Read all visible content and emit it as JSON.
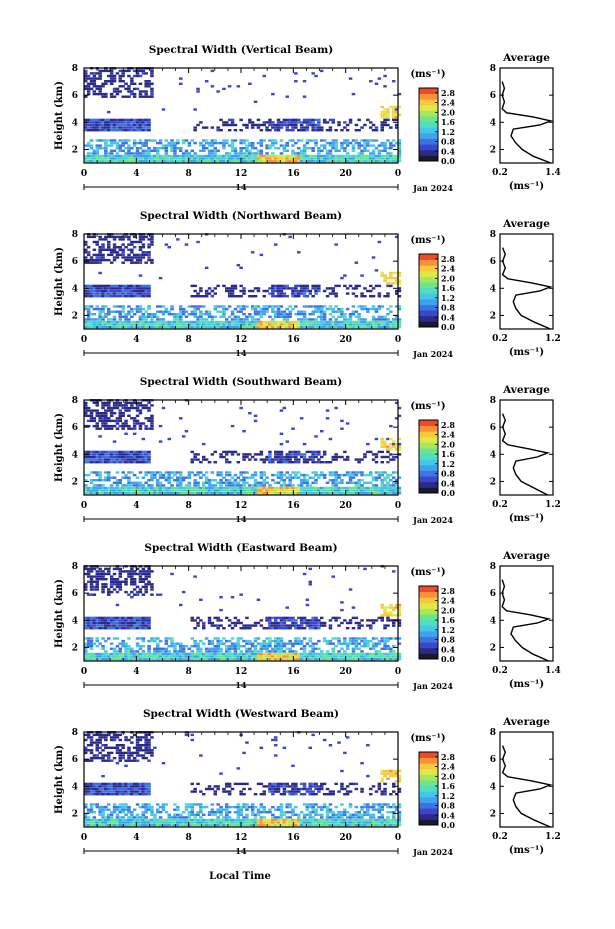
{
  "figure": {
    "x_axis_label": "Local Time",
    "date_label": "Jan 2024",
    "day_label": "14",
    "y_axis_label": "Height (km)",
    "colorbar_unit": "(ms⁻¹)",
    "average_title": "Average",
    "average_xlabel": "(ms⁻¹)"
  },
  "colorbar": {
    "colors": [
      "#1a1a2e",
      "#2b2b8c",
      "#3c46c8",
      "#3f73e0",
      "#3fa2ee",
      "#45c8e6",
      "#52dcc0",
      "#6fe28c",
      "#a6e85a",
      "#dfe84a",
      "#f7c83c",
      "#f7913a",
      "#ee4a2c"
    ]
  },
  "chart_data": [
    {
      "type": "heatmap",
      "title": "Spectral Width (Vertical Beam)",
      "xlim": [
        0,
        24
      ],
      "ylim": [
        1,
        8
      ],
      "x_ticks": [
        "0",
        "4",
        "8",
        "12",
        "16",
        "20",
        "0"
      ],
      "y_ticks": [
        "2",
        "4",
        "6",
        "8"
      ],
      "colorbar_ticks": [
        "0.0",
        "0.4",
        "0.8",
        "1.2",
        "1.6",
        "2.0",
        "2.4",
        "2.8"
      ],
      "colorbar_range": [
        0,
        3.0
      ],
      "average": {
        "title": "Average",
        "xlim": [
          0.2,
          1.4
        ],
        "x_ticks": [
          "0.2",
          "1.4"
        ],
        "ylim": [
          1,
          8
        ],
        "y_ticks": [
          "2",
          "4",
          "6",
          "8"
        ],
        "profile_height_km": [
          1.0,
          1.5,
          2.0,
          2.5,
          3.0,
          3.5,
          3.8,
          4.1,
          4.4,
          4.7,
          5.0,
          5.5,
          6.0,
          6.5,
          7.0
        ],
        "profile_value": [
          1.35,
          0.95,
          0.7,
          0.55,
          0.45,
          0.5,
          1.1,
          1.35,
          0.95,
          0.35,
          0.25,
          0.3,
          0.25,
          0.3,
          0.25
        ]
      }
    },
    {
      "type": "heatmap",
      "title": "Spectral Width (Northward Beam)",
      "xlim": [
        0,
        24
      ],
      "ylim": [
        1,
        8
      ],
      "x_ticks": [
        "0",
        "4",
        "8",
        "12",
        "16",
        "20",
        "0"
      ],
      "y_ticks": [
        "2",
        "4",
        "6",
        "8"
      ],
      "colorbar_ticks": [
        "0.0",
        "0.4",
        "0.8",
        "1.2",
        "1.6",
        "2.0",
        "2.4",
        "2.8"
      ],
      "colorbar_range": [
        0,
        3.0
      ],
      "average": {
        "title": "Average",
        "xlim": [
          0.2,
          1.2
        ],
        "x_ticks": [
          "0.2",
          "1.2"
        ],
        "ylim": [
          1,
          8
        ],
        "y_ticks": [
          "2",
          "4",
          "6",
          "8"
        ],
        "profile_height_km": [
          1.0,
          1.5,
          2.0,
          2.5,
          3.0,
          3.5,
          3.8,
          4.1,
          4.4,
          4.7,
          5.0,
          5.5,
          6.0,
          6.5,
          7.0
        ],
        "profile_value": [
          1.15,
          0.85,
          0.6,
          0.5,
          0.45,
          0.5,
          0.95,
          1.15,
          0.8,
          0.35,
          0.25,
          0.3,
          0.25,
          0.3,
          0.25
        ]
      }
    },
    {
      "type": "heatmap",
      "title": "Spectral Width (Southward Beam)",
      "xlim": [
        0,
        24
      ],
      "ylim": [
        1,
        8
      ],
      "x_ticks": [
        "0",
        "4",
        "8",
        "12",
        "16",
        "20",
        "0"
      ],
      "y_ticks": [
        "2",
        "4",
        "6",
        "8"
      ],
      "colorbar_ticks": [
        "0.0",
        "0.4",
        "0.8",
        "1.2",
        "1.6",
        "2.0",
        "2.4",
        "2.8"
      ],
      "colorbar_range": [
        0,
        3.0
      ],
      "average": {
        "title": "Average",
        "xlim": [
          0.2,
          1.2
        ],
        "x_ticks": [
          "0.2",
          "1.2"
        ],
        "ylim": [
          1,
          8
        ],
        "y_ticks": [
          "2",
          "4",
          "6",
          "8"
        ],
        "profile_height_km": [
          1.0,
          1.5,
          2.0,
          2.5,
          3.0,
          3.5,
          3.8,
          4.1,
          4.4,
          4.7,
          5.0,
          5.5,
          6.0,
          6.5,
          7.0
        ],
        "profile_value": [
          1.1,
          0.85,
          0.6,
          0.5,
          0.45,
          0.5,
          0.9,
          1.1,
          0.75,
          0.35,
          0.25,
          0.3,
          0.25,
          0.3,
          0.25
        ]
      }
    },
    {
      "type": "heatmap",
      "title": "Spectral Width (Eastward Beam)",
      "xlim": [
        0,
        24
      ],
      "ylim": [
        1,
        8
      ],
      "x_ticks": [
        "0",
        "4",
        "8",
        "12",
        "16",
        "20",
        "0"
      ],
      "y_ticks": [
        "2",
        "4",
        "6",
        "8"
      ],
      "colorbar_ticks": [
        "0.0",
        "0.4",
        "0.8",
        "1.2",
        "1.6",
        "2.0",
        "2.4",
        "2.8"
      ],
      "colorbar_range": [
        0,
        3.0
      ],
      "average": {
        "title": "Average",
        "xlim": [
          0.2,
          1.4
        ],
        "x_ticks": [
          "0.2",
          "1.4"
        ],
        "ylim": [
          1,
          8
        ],
        "y_ticks": [
          "2",
          "4",
          "6",
          "8"
        ],
        "profile_height_km": [
          1.0,
          1.5,
          2.0,
          2.5,
          3.0,
          3.5,
          3.8,
          4.1,
          4.4,
          4.7,
          5.0,
          5.5,
          6.0,
          6.5,
          7.0
        ],
        "profile_value": [
          1.3,
          0.95,
          0.7,
          0.55,
          0.45,
          0.5,
          1.05,
          1.3,
          0.9,
          0.35,
          0.25,
          0.3,
          0.25,
          0.3,
          0.25
        ]
      }
    },
    {
      "type": "heatmap",
      "title": "Spectral Width (Westward Beam)",
      "xlim": [
        0,
        24
      ],
      "ylim": [
        1,
        8
      ],
      "x_ticks": [
        "0",
        "4",
        "8",
        "12",
        "16",
        "20",
        "0"
      ],
      "y_ticks": [
        "2",
        "4",
        "6",
        "8"
      ],
      "colorbar_ticks": [
        "0.0",
        "0.4",
        "0.8",
        "1.2",
        "1.6",
        "2.0",
        "2.4",
        "2.8"
      ],
      "colorbar_range": [
        0,
        3.0
      ],
      "average": {
        "title": "Average",
        "xlim": [
          0.2,
          1.2
        ],
        "x_ticks": [
          "0.2",
          "1.2"
        ],
        "ylim": [
          1,
          8
        ],
        "y_ticks": [
          "2",
          "4",
          "6",
          "8"
        ],
        "profile_height_km": [
          1.0,
          1.5,
          2.0,
          2.5,
          3.0,
          3.5,
          3.8,
          4.1,
          4.4,
          4.7,
          5.0,
          5.5,
          6.0,
          6.5,
          7.0
        ],
        "profile_value": [
          1.15,
          0.85,
          0.6,
          0.5,
          0.45,
          0.5,
          0.95,
          1.15,
          0.8,
          0.35,
          0.25,
          0.3,
          0.25,
          0.3,
          0.25
        ]
      }
    }
  ]
}
